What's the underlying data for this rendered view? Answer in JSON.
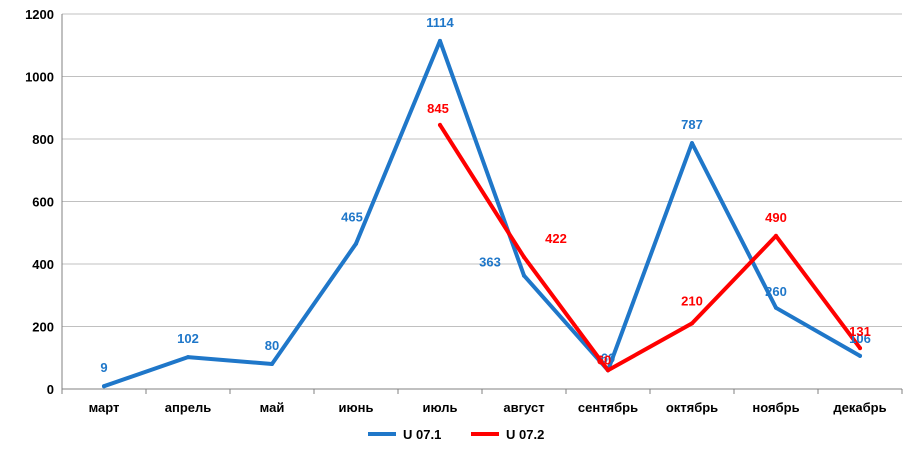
{
  "chart_data": {
    "type": "line",
    "categories": [
      "март",
      "апрель",
      "май",
      "июнь",
      "июль",
      "август",
      "сентябрь",
      "октябрь",
      "ноябрь",
      "декабрь"
    ],
    "series": [
      {
        "name": "U 07.1",
        "color": "#1F77C9",
        "values": [
          9,
          102,
          80,
          465,
          1114,
          363,
          60,
          787,
          260,
          106
        ]
      },
      {
        "name": "U 07.2",
        "color": "#FF0000",
        "values": [
          null,
          null,
          null,
          null,
          845,
          422,
          60,
          210,
          490,
          131
        ]
      }
    ],
    "yticks": [
      "0",
      "200",
      "400",
      "600",
      "800",
      "1000",
      "1200"
    ],
    "ylim": [
      0,
      1200
    ],
    "grid": true,
    "legend": "bottom"
  }
}
